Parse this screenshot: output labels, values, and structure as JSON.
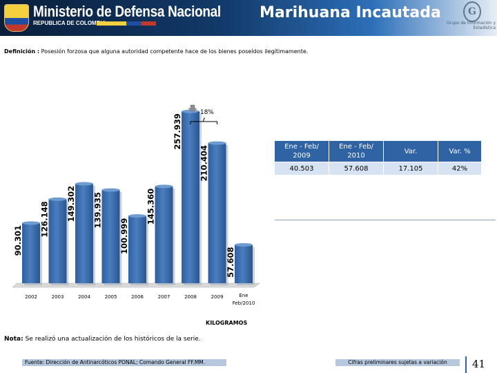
{
  "header": {
    "ministry": "Ministerio de Defensa Nacional",
    "republic": "REPUBLICA DE COLOMBIA",
    "title": "Marihuana Incautada",
    "logo_text": "Grupo de Información y Estadística"
  },
  "definition": {
    "label": "Definición :",
    "text": "Posesión forzosa que alguna autoridad competente hace de los bienes poseídos ilegítimamente."
  },
  "chart_data": {
    "type": "bar",
    "categories": [
      "2002",
      "2003",
      "2004",
      "2005",
      "2006",
      "2007",
      "2008",
      "2009",
      "Ene Feb/2010"
    ],
    "values": [
      90301,
      126148,
      149302,
      139935,
      100999,
      145360,
      257939,
      210404,
      57608
    ],
    "data_labels": [
      "90.301",
      "126.148",
      "149.302",
      "139.935",
      "100.999",
      "145.360",
      "257.939",
      "210.404",
      "57.608"
    ],
    "ylim": [
      0,
      280000
    ],
    "xlabel": "KILOGRAMOS",
    "bar_color": "#4a7ebf",
    "annotation": {
      "text": "-18%",
      "from": "2008",
      "to": "2009",
      "arrow": "down"
    }
  },
  "table": {
    "headers": [
      "Ene - Feb/ 2009",
      "Ene - Feb/ 2010",
      "Var.",
      "Var. %"
    ],
    "values": [
      "40.503",
      "57.608",
      "17.105",
      "42%"
    ]
  },
  "note": {
    "label": "Nota:",
    "text": "Se realizó una actualización de los históricos de la serie."
  },
  "footer": {
    "source": "Fuente: Dirección de Antinarcóticos PONAL; Comando General FF.MM.",
    "disclaimer": "Cifras preliminares sujetas a variación",
    "page": "41"
  }
}
